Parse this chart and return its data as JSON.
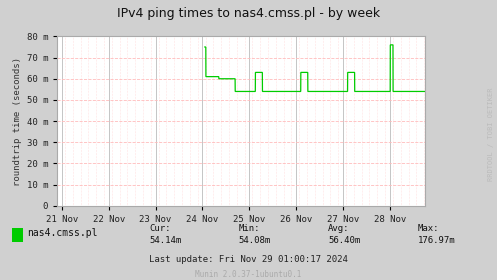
{
  "title": "IPv4 ping times to nas4.cmss.pl - by week",
  "ylabel": "roundtrip time (seconds)",
  "watermark": "RRDTOOL / TOBI OETIKER",
  "footer": "Munin 2.0.37-1ubuntu0.1",
  "legend_label": "nas4.cmss.pl",
  "cur": "54.14m",
  "min": "54.08m",
  "avg": "56.40m",
  "max": "176.97m",
  "last_update": "Last update: Fri Nov 29 01:00:17 2024",
  "bg_color": "#d0d0d0",
  "plot_bg_color": "#ffffff",
  "grid_major_color": "#aaaaaa",
  "grid_minor_h_color": "#ffbbbb",
  "grid_minor_v_color": "#ffbbbb",
  "line_color": "#00cc00",
  "border_color": "#aaaaaa",
  "ytick_labels": [
    "0",
    "10 m",
    "20 m",
    "30 m",
    "40 m",
    "50 m",
    "60 m",
    "70 m",
    "80 m"
  ],
  "ytick_values": [
    0,
    10,
    20,
    30,
    40,
    50,
    60,
    70,
    80
  ],
  "xtick_labels": [
    "21 Nov",
    "22 Nov",
    "23 Nov",
    "24 Nov",
    "25 Nov",
    "26 Nov",
    "27 Nov",
    "28 Nov"
  ],
  "xtick_positions": [
    0,
    1,
    2,
    3,
    4,
    5,
    6,
    7
  ],
  "ylim": [
    0,
    80
  ],
  "xlim": [
    -0.1,
    7.75
  ]
}
